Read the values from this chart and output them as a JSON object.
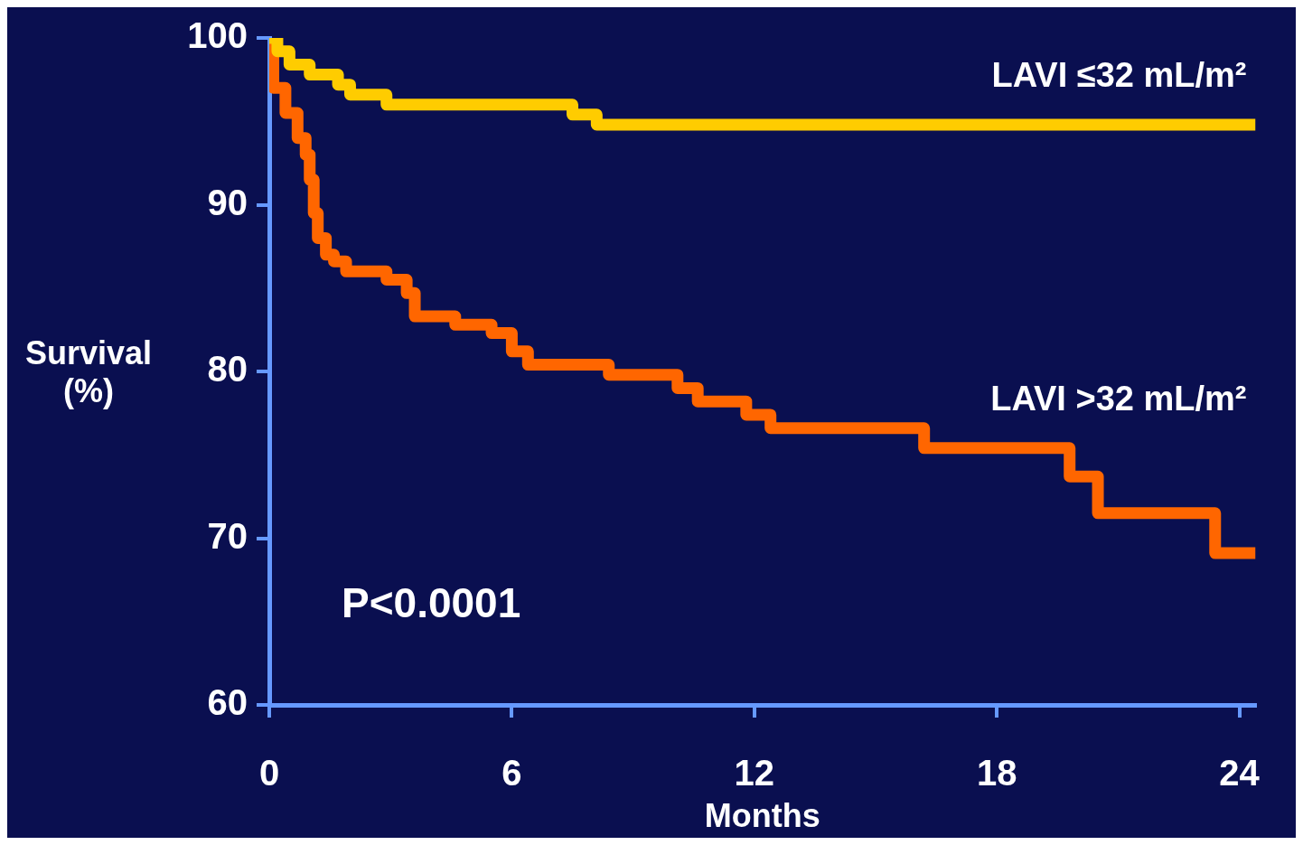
{
  "chart_data": {
    "type": "step",
    "xlabel": "Months",
    "ylabel": "Survival (%)",
    "xlim": [
      0,
      24.4
    ],
    "xticks": [
      0,
      6,
      12,
      18,
      24
    ],
    "ylim": [
      60,
      100
    ],
    "yticks": [
      60,
      70,
      80,
      90,
      100
    ],
    "grid": false,
    "legend": false,
    "marker": "none",
    "line_style": "solid",
    "series": [
      {
        "name": "LAVI ≤32 mL/m²",
        "color": "#ffcc00",
        "x": [
          0,
          0.2,
          0.5,
          1.0,
          1.7,
          2.0,
          2.9,
          7.5,
          8.1,
          24.4
        ],
        "values": [
          100,
          99.2,
          98.4,
          97.8,
          97.2,
          96.6,
          96,
          95.4,
          94.8,
          94.8
        ]
      },
      {
        "name": "LAVI >32 mL/m²",
        "color": "#ff6600",
        "x": [
          0,
          0.1,
          0.4,
          0.7,
          0.9,
          1.0,
          1.1,
          1.2,
          1.4,
          1.6,
          1.9,
          2.9,
          3.4,
          3.6,
          4.6,
          5.5,
          6.0,
          6.4,
          8.4,
          10.1,
          10.6,
          11.8,
          12.4,
          16.2,
          19.8,
          20.5,
          23.4,
          24.4
        ],
        "values": [
          100,
          97,
          95.5,
          94,
          93,
          91.5,
          89.5,
          88,
          87,
          86.6,
          86,
          85.5,
          84.7,
          83.3,
          82.8,
          82.3,
          81.2,
          80.4,
          79.8,
          79,
          78.2,
          77.4,
          76.6,
          75.4,
          73.7,
          71.5,
          69.1,
          69.1
        ]
      }
    ],
    "annotations": [
      "P<0.0001"
    ]
  }
}
